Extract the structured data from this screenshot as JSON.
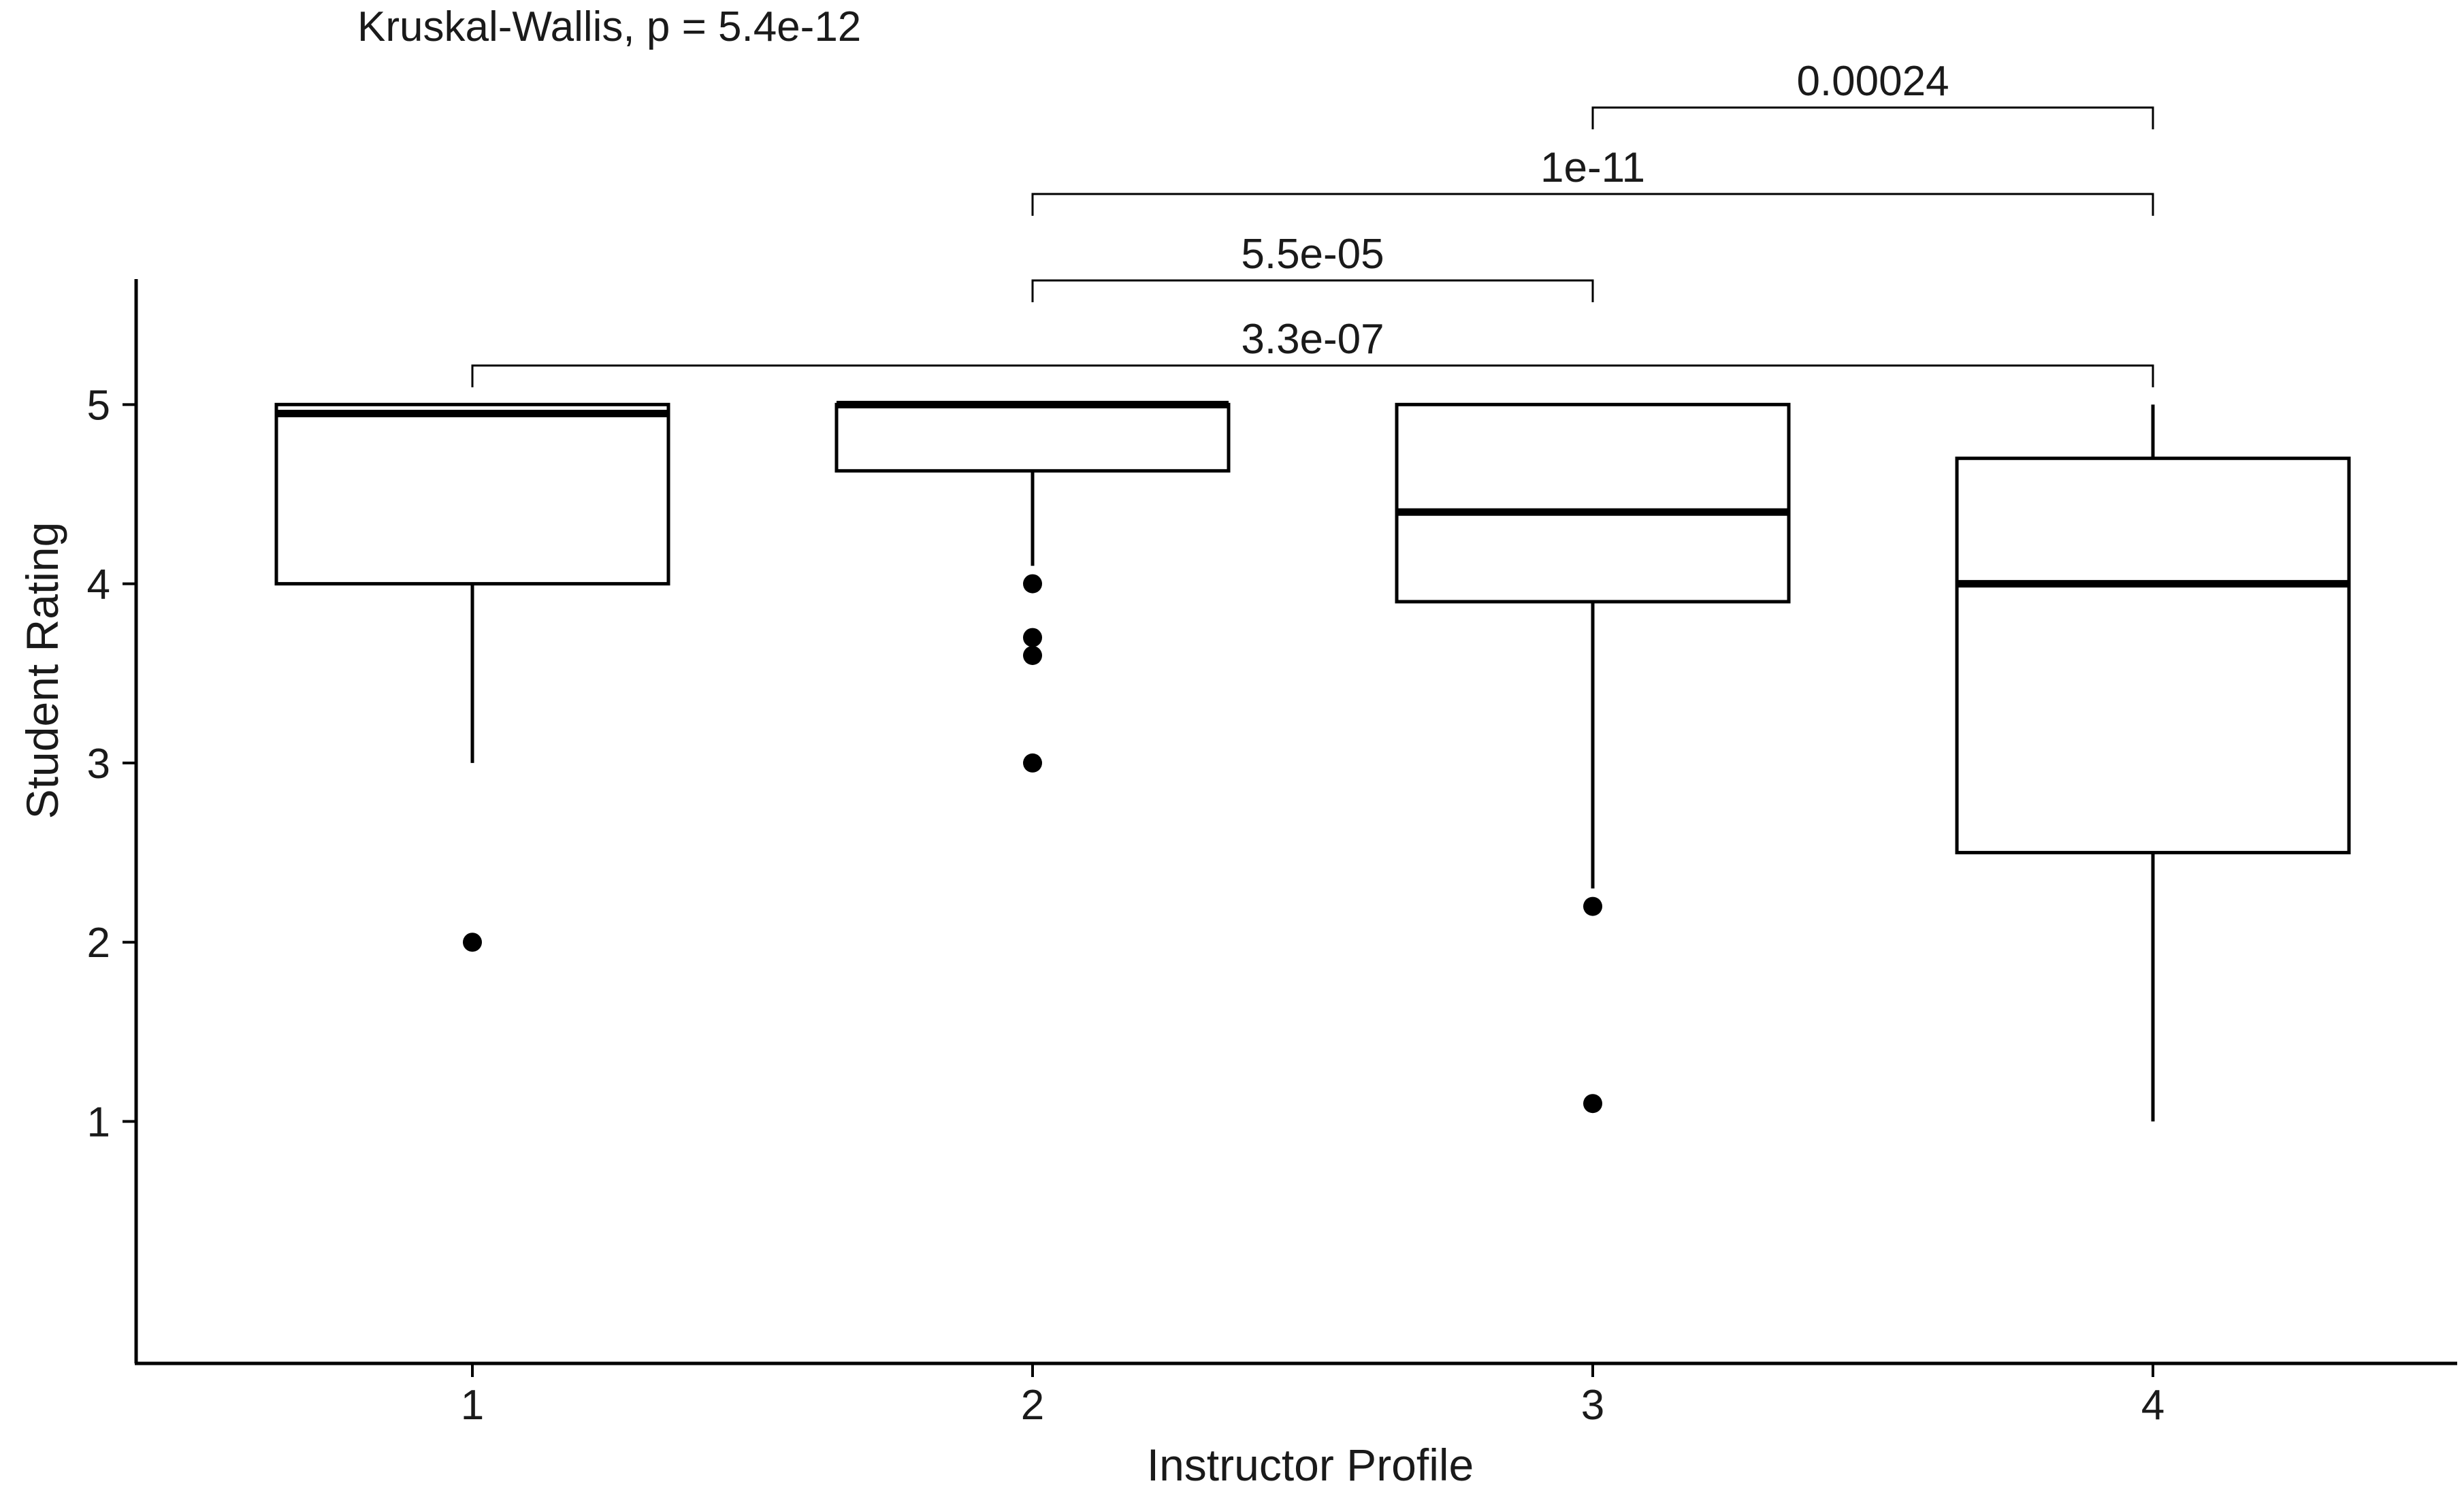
{
  "chart_data": {
    "type": "box",
    "title": "Kruskal-Wallis, p = 5.4e-12",
    "xlabel": "Instructor Profile",
    "ylabel": "Student Rating",
    "categories": [
      "1",
      "2",
      "3",
      "4"
    ],
    "yticks": [
      1,
      2,
      3,
      4,
      5
    ],
    "ylim": [
      -0.35,
      5.7
    ],
    "boxes": [
      {
        "category": "1",
        "whisker_low": 3.0,
        "q1": 4.0,
        "median": 4.95,
        "q3": 5.0,
        "whisker_high": 5.0,
        "outliers": [
          2.0
        ]
      },
      {
        "category": "2",
        "whisker_low": 4.1,
        "q1": 4.63,
        "median": 5.0,
        "q3": 5.0,
        "whisker_high": 5.0,
        "outliers": [
          4.0,
          3.7,
          3.6,
          3.0
        ]
      },
      {
        "category": "3",
        "whisker_low": 2.3,
        "q1": 3.9,
        "median": 4.4,
        "q3": 5.0,
        "whisker_high": 5.0,
        "outliers": [
          2.2,
          1.1
        ]
      },
      {
        "category": "4",
        "whisker_low": 1.0,
        "q1": 2.5,
        "median": 4.0,
        "q3": 4.7,
        "whisker_high": 5.0,
        "outliers": []
      }
    ],
    "comparisons": [
      {
        "from": "3",
        "to": "4",
        "label": "0.00024"
      },
      {
        "from": "2",
        "to": "4",
        "label": "1e-11"
      },
      {
        "from": "2",
        "to": "3",
        "label": "5.5e-05"
      },
      {
        "from": "1",
        "to": "4",
        "label": "3.3e-07"
      }
    ],
    "grid": false,
    "legend": "none"
  }
}
